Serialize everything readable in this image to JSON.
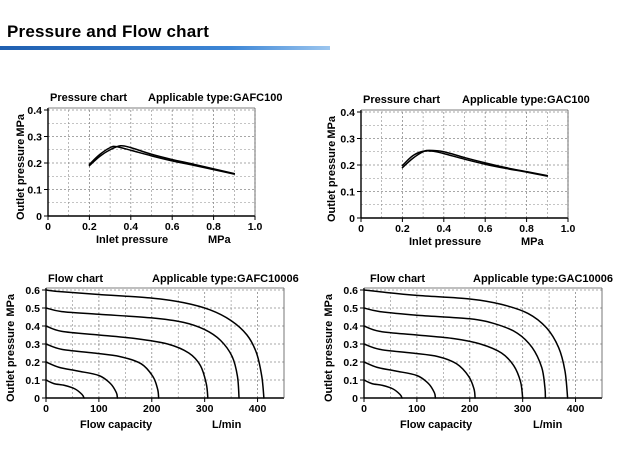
{
  "page": {
    "title": "Pressure and Flow chart"
  },
  "colors": {
    "accent": "#2f78c8",
    "grid": "#8a8a8a",
    "curve": "#000000"
  },
  "chart_data": [
    {
      "id": "pc1",
      "type": "line",
      "title": "Pressure chart",
      "subtitle": "Applicable type:GAFC100",
      "xlabel": "Inlet pressure",
      "xunit": "MPa",
      "ylabel": "Outlet pressure",
      "yunit": "MPa",
      "xlim": [
        0,
        1.0
      ],
      "ylim": [
        0,
        0.4
      ],
      "xticks": [
        0,
        0.2,
        0.4,
        0.6,
        0.8,
        1.0
      ],
      "xtick_labels": [
        "0",
        "0.2",
        "0.4",
        "0.6",
        "0.8",
        "1.0"
      ],
      "yticks": [
        0,
        0.1,
        0.2,
        0.3,
        0.4
      ],
      "ytick_labels": [
        "0",
        "0.1",
        "0.2",
        "0.3",
        "0.4"
      ],
      "grid": "dashed",
      "series": [
        {
          "points": [
            [
              0.2,
              0.19
            ],
            [
              0.25,
              0.225
            ],
            [
              0.3,
              0.25
            ],
            [
              0.35,
              0.265
            ],
            [
              0.4,
              0.258
            ],
            [
              0.5,
              0.233
            ],
            [
              0.6,
              0.213
            ],
            [
              0.7,
              0.196
            ],
            [
              0.8,
              0.178
            ],
            [
              0.9,
              0.16
            ]
          ]
        },
        {
          "points": [
            [
              0.2,
              0.195
            ],
            [
              0.25,
              0.232
            ],
            [
              0.3,
              0.258
            ],
            [
              0.33,
              0.262
            ],
            [
              0.4,
              0.248
            ],
            [
              0.5,
              0.227
            ],
            [
              0.6,
              0.208
            ],
            [
              0.7,
              0.192
            ],
            [
              0.8,
              0.175
            ],
            [
              0.9,
              0.158
            ]
          ]
        }
      ]
    },
    {
      "id": "pc2",
      "type": "line",
      "title": "Pressure chart",
      "subtitle": "Applicable type:GAC100",
      "xlabel": "Inlet pressure",
      "xunit": "MPa",
      "ylabel": "Outlet pressure",
      "yunit": "MPa",
      "xlim": [
        0,
        1.0
      ],
      "ylim": [
        0,
        0.4
      ],
      "xticks": [
        0,
        0.2,
        0.4,
        0.6,
        0.8,
        1.0
      ],
      "xtick_labels": [
        "0",
        "0.2",
        "0.4",
        "0.6",
        "0.8",
        "1.0"
      ],
      "yticks": [
        0,
        0.1,
        0.2,
        0.3,
        0.4
      ],
      "ytick_labels": [
        "0",
        "0.1",
        "0.2",
        "0.3",
        "0.4"
      ],
      "grid": "dashed",
      "series": [
        {
          "points": [
            [
              0.2,
              0.19
            ],
            [
              0.25,
              0.225
            ],
            [
              0.3,
              0.25
            ],
            [
              0.33,
              0.255
            ],
            [
              0.4,
              0.25
            ],
            [
              0.5,
              0.228
            ],
            [
              0.6,
              0.208
            ],
            [
              0.7,
              0.19
            ],
            [
              0.8,
              0.175
            ],
            [
              0.9,
              0.16
            ]
          ]
        },
        {
          "points": [
            [
              0.2,
              0.198
            ],
            [
              0.25,
              0.235
            ],
            [
              0.3,
              0.252
            ],
            [
              0.35,
              0.252
            ],
            [
              0.4,
              0.243
            ],
            [
              0.5,
              0.222
            ],
            [
              0.6,
              0.203
            ],
            [
              0.7,
              0.187
            ],
            [
              0.8,
              0.173
            ],
            [
              0.9,
              0.158
            ]
          ]
        }
      ]
    },
    {
      "id": "fc1",
      "type": "line",
      "title": "Flow chart",
      "subtitle": "Applicable type:GAFC10006",
      "xlabel": "Flow capacity",
      "xunit": "L/min",
      "ylabel": "Outlet pressure",
      "yunit": "MPa",
      "xlim": [
        0,
        450
      ],
      "ylim": [
        0,
        0.6
      ],
      "xticks": [
        0,
        100,
        200,
        300,
        400
      ],
      "xtick_labels": [
        "0",
        "100",
        "200",
        "300",
        "400"
      ],
      "yticks": [
        0,
        0.1,
        0.2,
        0.3,
        0.4,
        0.5,
        0.6
      ],
      "ytick_labels": [
        "0",
        "0.1",
        "0.2",
        "0.3",
        "0.4",
        "0.5",
        "0.6"
      ],
      "grid": "dashed",
      "series": [
        {
          "points": [
            [
              0,
              0.6
            ],
            [
              30,
              0.59
            ],
            [
              100,
              0.575
            ],
            [
              200,
              0.555
            ],
            [
              260,
              0.53
            ],
            [
              310,
              0.49
            ],
            [
              350,
              0.43
            ],
            [
              380,
              0.35
            ],
            [
              398,
              0.25
            ],
            [
              408,
              0.12
            ],
            [
              412,
              0
            ]
          ]
        },
        {
          "points": [
            [
              0,
              0.5
            ],
            [
              30,
              0.48
            ],
            [
              100,
              0.465
            ],
            [
              200,
              0.445
            ],
            [
              260,
              0.42
            ],
            [
              300,
              0.38
            ],
            [
              330,
              0.32
            ],
            [
              352,
              0.23
            ],
            [
              362,
              0.12
            ],
            [
              365,
              0
            ]
          ]
        },
        {
          "points": [
            [
              0,
              0.4
            ],
            [
              30,
              0.37
            ],
            [
              100,
              0.35
            ],
            [
              170,
              0.33
            ],
            [
              230,
              0.3
            ],
            [
              270,
              0.25
            ],
            [
              292,
              0.18
            ],
            [
              303,
              0.08
            ],
            [
              306,
              0
            ]
          ]
        },
        {
          "points": [
            [
              0,
              0.3
            ],
            [
              30,
              0.27
            ],
            [
              90,
              0.25
            ],
            [
              140,
              0.23
            ],
            [
              180,
              0.19
            ],
            [
              202,
              0.12
            ],
            [
              211,
              0.05
            ],
            [
              213,
              0
            ]
          ]
        },
        {
          "points": [
            [
              0,
              0.2
            ],
            [
              25,
              0.17
            ],
            [
              60,
              0.15
            ],
            [
              100,
              0.125
            ],
            [
              122,
              0.08
            ],
            [
              133,
              0.03
            ],
            [
              135,
              0
            ]
          ]
        },
        {
          "points": [
            [
              0,
              0.1
            ],
            [
              15,
              0.08
            ],
            [
              35,
              0.07
            ],
            [
              55,
              0.05
            ],
            [
              68,
              0.02
            ],
            [
              72,
              0
            ]
          ]
        }
      ]
    },
    {
      "id": "fc2",
      "type": "line",
      "title": "Flow chart",
      "subtitle": "Applicable type:GAC10006",
      "xlabel": "Flow capacity",
      "xunit": "L/min",
      "ylabel": "Outlet pressure",
      "yunit": "MPa",
      "xlim": [
        0,
        450
      ],
      "ylim": [
        0,
        0.6
      ],
      "xticks": [
        0,
        100,
        200,
        300,
        400
      ],
      "xtick_labels": [
        "0",
        "100",
        "200",
        "300",
        "400"
      ],
      "yticks": [
        0,
        0.1,
        0.2,
        0.3,
        0.4,
        0.5,
        0.6
      ],
      "ytick_labels": [
        "0",
        "0.1",
        "0.2",
        "0.3",
        "0.4",
        "0.5",
        "0.6"
      ],
      "grid": "dashed",
      "series": [
        {
          "points": [
            [
              0,
              0.6
            ],
            [
              30,
              0.59
            ],
            [
              100,
              0.57
            ],
            [
              200,
              0.55
            ],
            [
              260,
              0.52
            ],
            [
              310,
              0.47
            ],
            [
              345,
              0.39
            ],
            [
              368,
              0.28
            ],
            [
              380,
              0.15
            ],
            [
              385,
              0
            ]
          ]
        },
        {
          "points": [
            [
              0,
              0.5
            ],
            [
              30,
              0.48
            ],
            [
              100,
              0.46
            ],
            [
              200,
              0.44
            ],
            [
              250,
              0.41
            ],
            [
              290,
              0.36
            ],
            [
              318,
              0.28
            ],
            [
              336,
              0.17
            ],
            [
              342,
              0.06
            ],
            [
              343,
              0
            ]
          ]
        },
        {
          "points": [
            [
              0,
              0.4
            ],
            [
              30,
              0.37
            ],
            [
              100,
              0.35
            ],
            [
              170,
              0.33
            ],
            [
              220,
              0.3
            ],
            [
              260,
              0.25
            ],
            [
              283,
              0.18
            ],
            [
              296,
              0.09
            ],
            [
              300,
              0
            ]
          ]
        },
        {
          "points": [
            [
              0,
              0.3
            ],
            [
              30,
              0.27
            ],
            [
              90,
              0.25
            ],
            [
              140,
              0.23
            ],
            [
              175,
              0.19
            ],
            [
              198,
              0.12
            ],
            [
              208,
              0.05
            ],
            [
              210,
              0
            ]
          ]
        },
        {
          "points": [
            [
              0,
              0.2
            ],
            [
              25,
              0.17
            ],
            [
              60,
              0.15
            ],
            [
              100,
              0.125
            ],
            [
              122,
              0.08
            ],
            [
              133,
              0.03
            ],
            [
              135,
              0
            ]
          ]
        },
        {
          "points": [
            [
              0,
              0.1
            ],
            [
              15,
              0.08
            ],
            [
              35,
              0.07
            ],
            [
              55,
              0.05
            ],
            [
              68,
              0.02
            ],
            [
              72,
              0
            ]
          ]
        }
      ]
    }
  ]
}
